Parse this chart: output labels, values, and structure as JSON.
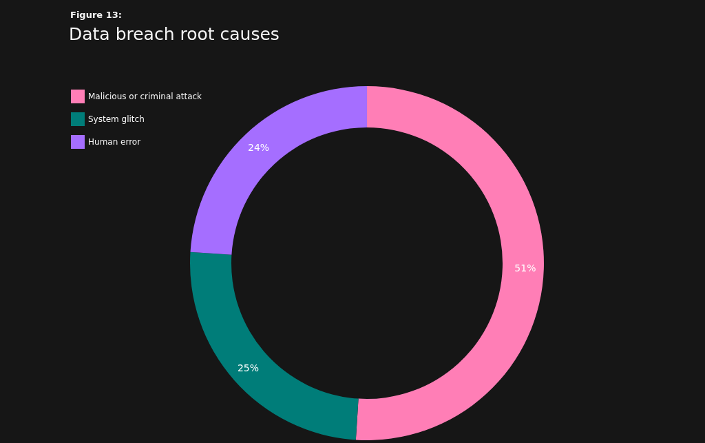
{
  "chart_data": {
    "type": "donut",
    "subtitle": "Figure 13:",
    "title": "Data breach root causes",
    "categories": [
      "Malicious or criminal attack",
      "System glitch",
      "Human error"
    ],
    "values": [
      51,
      25,
      24
    ],
    "value_labels": [
      "51%",
      "25%",
      "24%"
    ],
    "colors": [
      "#ff7eb6",
      "#007d79",
      "#a56eff"
    ],
    "legend": "top left"
  }
}
